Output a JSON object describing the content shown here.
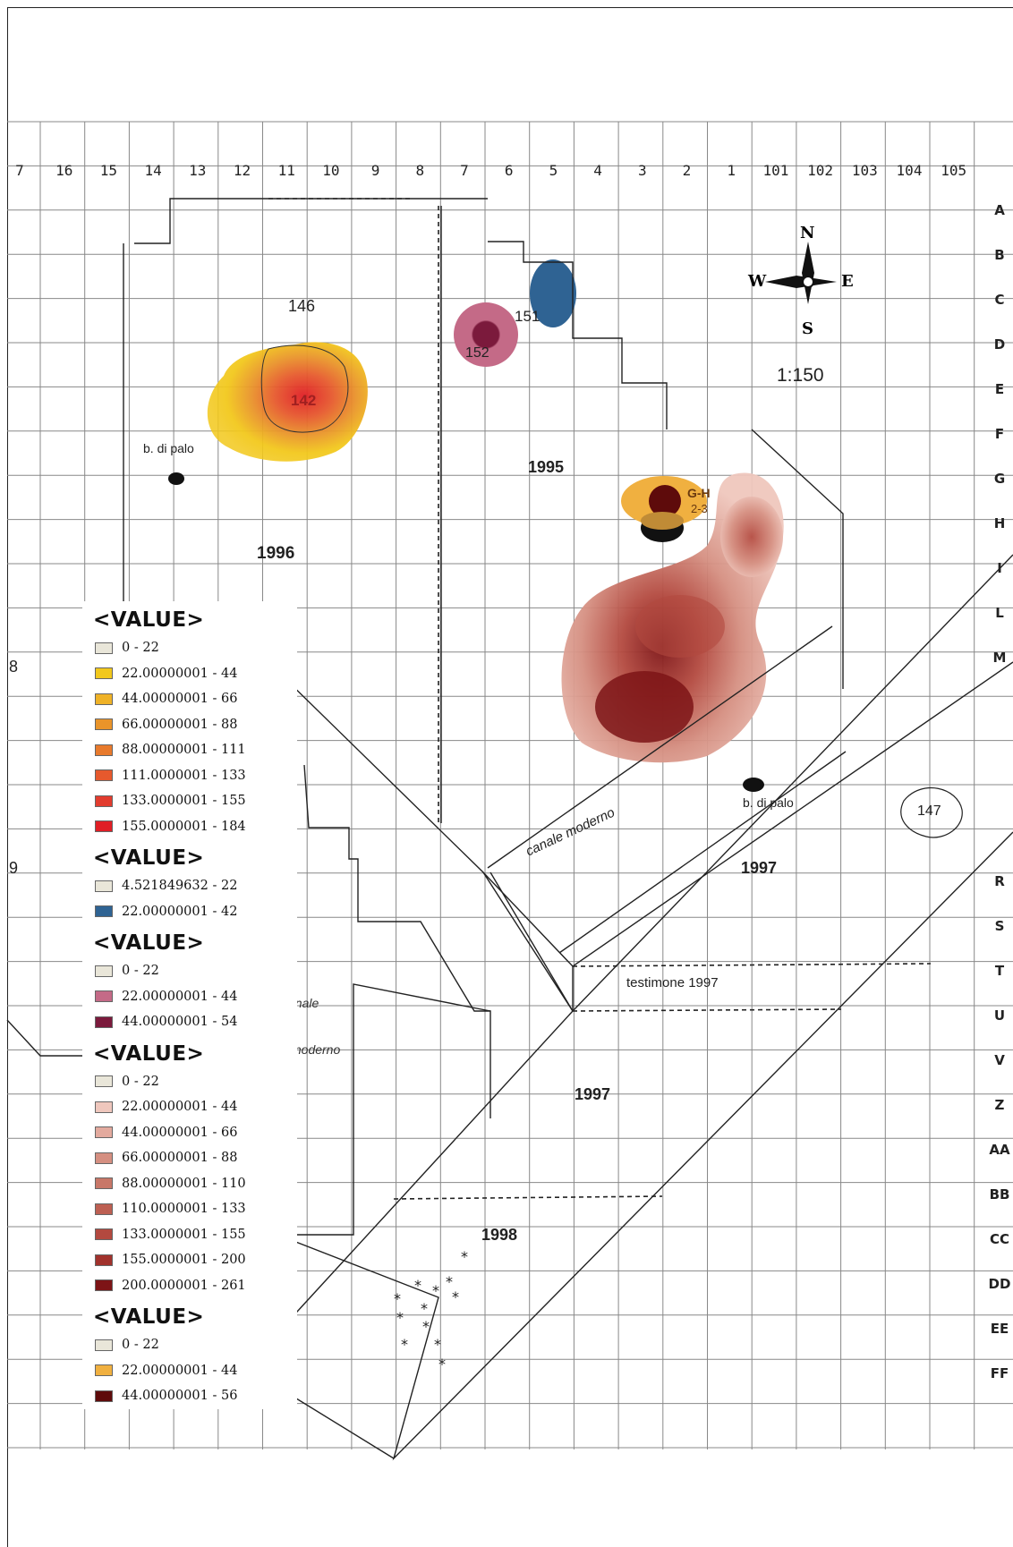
{
  "columns": [
    "7",
    "16",
    "15",
    "14",
    "13",
    "12",
    "11",
    "10",
    "9",
    "8",
    "7",
    "6",
    "5",
    "4",
    "3",
    "2",
    "1",
    "101",
    "102",
    "103",
    "104",
    "105"
  ],
  "rows": [
    "A",
    "B",
    "C",
    "D",
    "E",
    "F",
    "G",
    "H",
    "I",
    "L",
    "M",
    "R",
    "S",
    "T",
    "U",
    "V",
    "Z",
    "AA",
    "BB",
    "CC",
    "DD",
    "EE",
    "FF"
  ],
  "map_labels": {
    "area_146": "146",
    "area_142": "142",
    "area_151": "151",
    "area_152": "152",
    "area_147": "147",
    "gh": "G-H",
    "gh_num": "2-3",
    "partial_8": "8",
    "partial_9": "9",
    "buco_palo_1": "b. di palo",
    "buco_palo_2": "b. di palo",
    "year_1996": "1996",
    "year_1995": "1995",
    "year_1997a": "1997",
    "year_1997b": "1997",
    "year_1998": "1998",
    "canale_moderno_1": "canale moderno",
    "canale_moderno_2a": "canale",
    "canale_moderno_2b": "moderno",
    "testimone": "testimone 1997",
    "scale": "1:150",
    "compass_n": "N",
    "compass_s": "S",
    "compass_e": "E",
    "compass_w": "W"
  },
  "legend_groups": [
    {
      "title": "<VALUE>",
      "items": [
        {
          "label": "0 - 22",
          "color": "#e9e6d9"
        },
        {
          "label": "22.00000001 - 44",
          "color": "#f2c81c"
        },
        {
          "label": "44.00000001 - 66",
          "color": "#efb227"
        },
        {
          "label": "66.00000001 - 88",
          "color": "#e9942a"
        },
        {
          "label": "88.00000001 - 111",
          "color": "#e87a2c"
        },
        {
          "label": "111.0000001 - 133",
          "color": "#e6592d"
        },
        {
          "label": "133.0000001 - 155",
          "color": "#e23c2e"
        },
        {
          "label": "155.0000001 - 184",
          "color": "#e01e25"
        }
      ]
    },
    {
      "title": "<VALUE>",
      "items": [
        {
          "label": "4.521849632 - 22",
          "color": "#e9e6d9"
        },
        {
          "label": "22.00000001 - 42",
          "color": "#2f6393"
        }
      ]
    },
    {
      "title": "<VALUE>",
      "items": [
        {
          "label": "0 - 22",
          "color": "#e9e6d9"
        },
        {
          "label": "22.00000001 - 44",
          "color": "#c46a87"
        },
        {
          "label": "44.00000001 - 54",
          "color": "#7b1a3c"
        }
      ]
    },
    {
      "title": "<VALUE>",
      "items": [
        {
          "label": "0 - 22",
          "color": "#e9e6d9"
        },
        {
          "label": "22.00000001 - 44",
          "color": "#efc7bd"
        },
        {
          "label": "44.00000001 - 66",
          "color": "#e3aa9e"
        },
        {
          "label": "66.00000001 - 88",
          "color": "#d58f81"
        },
        {
          "label": "88.00000001 - 110",
          "color": "#c87768"
        },
        {
          "label": "110.0000001 - 133",
          "color": "#bd5f52"
        },
        {
          "label": "133.0000001 - 155",
          "color": "#b3493f"
        },
        {
          "label": "155.0000001 - 200",
          "color": "#a1322c"
        },
        {
          "label": "200.0000001 - 261",
          "color": "#7d1416"
        }
      ]
    },
    {
      "title": "<VALUE>",
      "items": [
        {
          "label": "0 - 22",
          "color": "#e9e6d9"
        },
        {
          "label": "22.00000001 - 44",
          "color": "#f0b040"
        },
        {
          "label": "44.00000001 - 56",
          "color": "#5e0b0b"
        }
      ]
    }
  ]
}
